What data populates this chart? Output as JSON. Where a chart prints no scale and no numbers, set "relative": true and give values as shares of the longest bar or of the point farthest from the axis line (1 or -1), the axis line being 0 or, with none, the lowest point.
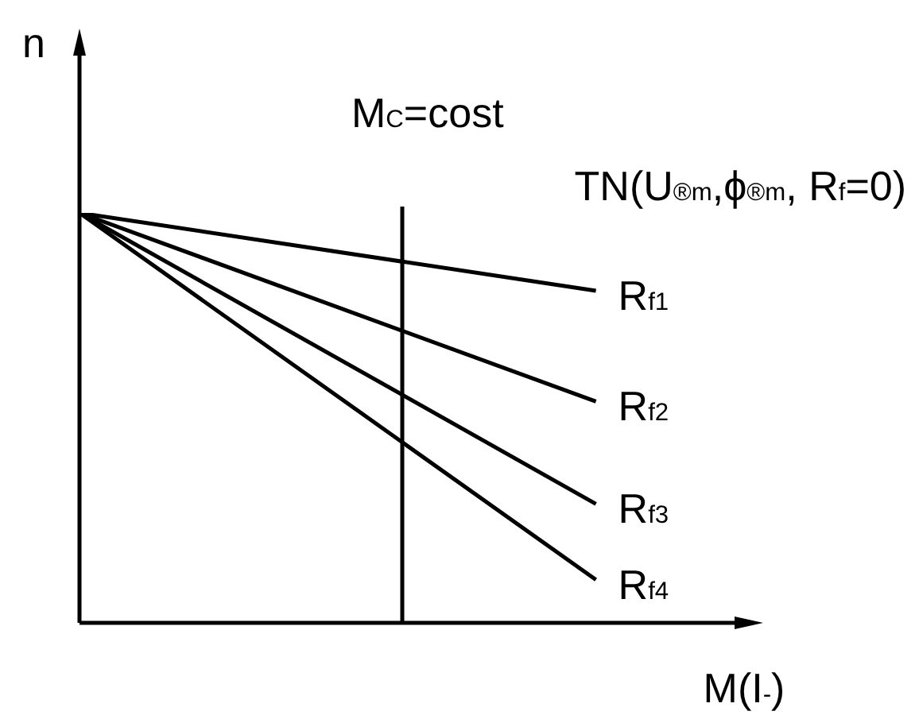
{
  "chart_data": {
    "type": "line",
    "relative": true,
    "ylabel": "n",
    "xlabel": "M(I$_{-}$)",
    "categories": [
      null,
      null,
      null,
      null,
      null,
      null,
      null,
      null,
      null,
      null,
      null
    ],
    "series": [
      {
        "name": "R$_{f1}$",
        "color": "#000000",
        "values": [
          1,
          null,
          null,
          null,
          null,
          null,
          null,
          null,
          0.81,
          null,
          null
        ]
      },
      {
        "name": "R$_{f2}$",
        "color": "#000000",
        "values": [
          1,
          null,
          null,
          null,
          null,
          null,
          null,
          null,
          0.54,
          null,
          null
        ]
      },
      {
        "name": "R$_{f3}$",
        "color": "#000000",
        "values": [
          1,
          null,
          null,
          null,
          null,
          null,
          null,
          null,
          0.29,
          null,
          null
        ]
      },
      {
        "name": "R$_{f4}$",
        "color": "#000000",
        "values": [
          1,
          null,
          null,
          null,
          null,
          null,
          null,
          null,
          0.105,
          null,
          null
        ]
      }
    ],
    "annotations": [
      "M$_{C}$=cost",
      "TN(U$_{®m}$,ϕ$_{®m}$, R$_{f}$=0)"
    ],
    "marker": "none",
    "line_style": "solid"
  }
}
